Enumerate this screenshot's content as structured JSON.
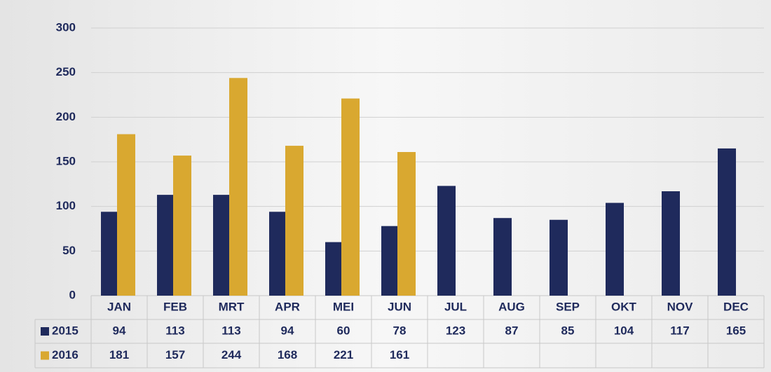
{
  "chart_data": {
    "type": "bar",
    "categories": [
      "JAN",
      "FEB",
      "MRT",
      "APR",
      "MEI",
      "JUN",
      "JUL",
      "AUG",
      "SEP",
      "OKT",
      "NOV",
      "DEC"
    ],
    "series": [
      {
        "name": "2015",
        "color": "#1f2a5c",
        "values": [
          94,
          113,
          113,
          94,
          60,
          78,
          123,
          87,
          85,
          104,
          117,
          165
        ]
      },
      {
        "name": "2016",
        "color": "#d9a830",
        "values": [
          181,
          157,
          244,
          168,
          221,
          161,
          null,
          null,
          null,
          null,
          null,
          null
        ]
      }
    ],
    "ylim": [
      0,
      300
    ],
    "yticks": [
      0,
      50,
      100,
      150,
      200,
      250,
      300
    ],
    "grid": true
  }
}
